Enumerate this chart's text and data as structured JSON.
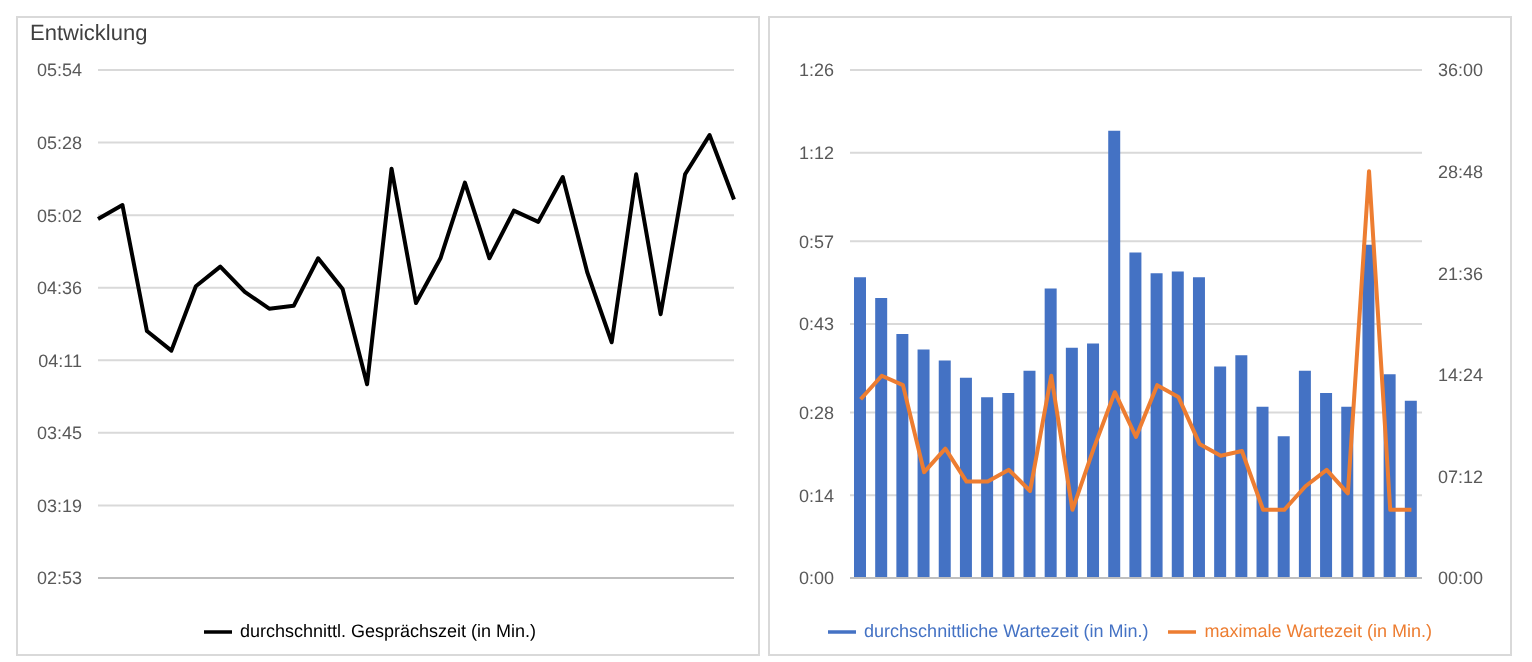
{
  "chart_data": [
    {
      "type": "line",
      "title": "Entwicklung",
      "categories": [
        null,
        null,
        null,
        null,
        null,
        null,
        null,
        null,
        null,
        null,
        null,
        null,
        null,
        null,
        null,
        null,
        null,
        null,
        null,
        null,
        null,
        null,
        null,
        null,
        null,
        null,
        null
      ],
      "series": [
        {
          "name": "durchschnittl. Gesprächszeit (in Min.)",
          "color": "#000000",
          "values": [
            301,
            306,
            261,
            254,
            277,
            284,
            275,
            269,
            270,
            287,
            276,
            242,
            319,
            271,
            287,
            314,
            287,
            304,
            300,
            316,
            282,
            257,
            317,
            267,
            317,
            331,
            308
          ]
        }
      ],
      "ylim": [
        172.8,
        354.24
      ],
      "yticks": [
        {
          "value": 172.8,
          "label": "02:53"
        },
        {
          "value": 198.72,
          "label": "03:19"
        },
        {
          "value": 224.64,
          "label": "03:45"
        },
        {
          "value": 250.56,
          "label": "04:11"
        },
        {
          "value": 276.48,
          "label": "04:36"
        },
        {
          "value": 302.4,
          "label": "05:02"
        },
        {
          "value": 328.32,
          "label": "05:28"
        },
        {
          "value": 354.24,
          "label": "05:54"
        }
      ],
      "grid": "y",
      "legend": "bottom",
      "marker": "none"
    },
    {
      "type": "bar",
      "categories": [
        null,
        null,
        null,
        null,
        null,
        null,
        null,
        null,
        null,
        null,
        null,
        null,
        null,
        null,
        null,
        null,
        null,
        null,
        null,
        null,
        null,
        null,
        null,
        null,
        null,
        null,
        null
      ],
      "series": [
        {
          "name": "durchschnittliche Wartezeit (in Min.)",
          "color": "#4472c4",
          "values": [
            50.9,
            47.4,
            41.3,
            38.7,
            36.8,
            33.9,
            30.6,
            31.3,
            35.1,
            49,
            39,
            39.7,
            75.7,
            55.1,
            51.6,
            51.9,
            50.9,
            35.8,
            37.7,
            29,
            24,
            35.1,
            31.3,
            29,
            56.4,
            34.5,
            30
          ]
        },
        {
          "name": "maximale Wartezeit (in Min.)",
          "type": "line",
          "axis": "y2",
          "color": "#ed7d31",
          "values": [
            760,
            860,
            820,
            450,
            550,
            410,
            410,
            460,
            370,
            860,
            290,
            550,
            790,
            600,
            820,
            770,
            570,
            520,
            540,
            290,
            290,
            390,
            460,
            360,
            1730,
            290,
            290
          ]
        }
      ],
      "ylim": [
        0,
        86
      ],
      "yticks": [
        {
          "value": 0,
          "label": "0:00"
        },
        {
          "value": 14,
          "label": "0:14"
        },
        {
          "value": 28,
          "label": "0:28"
        },
        {
          "value": 43,
          "label": "0:43"
        },
        {
          "value": 57,
          "label": "0:57"
        },
        {
          "value": 72,
          "label": "1:12"
        },
        {
          "value": 86,
          "label": "1:26"
        }
      ],
      "y2lim": [
        0,
        2160
      ],
      "y2ticks": [
        {
          "value": 0,
          "label": "00:00"
        },
        {
          "value": 432,
          "label": "07:12"
        },
        {
          "value": 864,
          "label": "14:24"
        },
        {
          "value": 1296,
          "label": "21:36"
        },
        {
          "value": 1728,
          "label": "28:48"
        },
        {
          "value": 2160,
          "label": "36:00"
        }
      ],
      "grid": "y",
      "legend": "bottom",
      "marker": "none"
    }
  ]
}
